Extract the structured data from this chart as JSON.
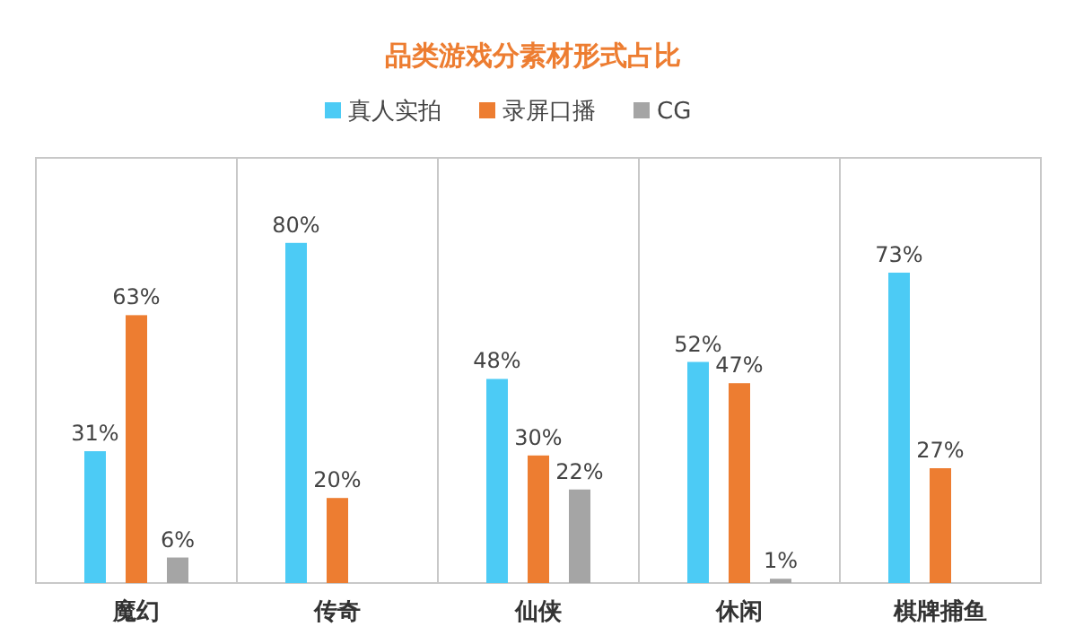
{
  "chart_data": {
    "type": "bar",
    "title": "品类游戏分素材形式占比",
    "legend": "top",
    "grid": false,
    "categories": [
      "魔幻",
      "传奇",
      "仙侠",
      "休闲",
      "棋牌捕鱼"
    ],
    "series": [
      {
        "name": "真人实拍",
        "color": "#4ccbf5",
        "values": [
          31,
          80,
          48,
          52,
          73
        ],
        "value_labels": [
          "31%",
          "80%",
          "48%",
          "52%",
          "73%"
        ]
      },
      {
        "name": "录屏口播",
        "color": "#ed7d31",
        "values": [
          63,
          20,
          30,
          47,
          27
        ],
        "value_labels": [
          "63%",
          "20%",
          "30%",
          "47%",
          "27%"
        ]
      },
      {
        "name": "CG",
        "color": "#a5a5a5",
        "values": [
          6,
          null,
          22,
          1,
          null
        ],
        "value_labels": [
          "6%",
          null,
          "22%",
          "1%",
          null
        ]
      }
    ]
  }
}
